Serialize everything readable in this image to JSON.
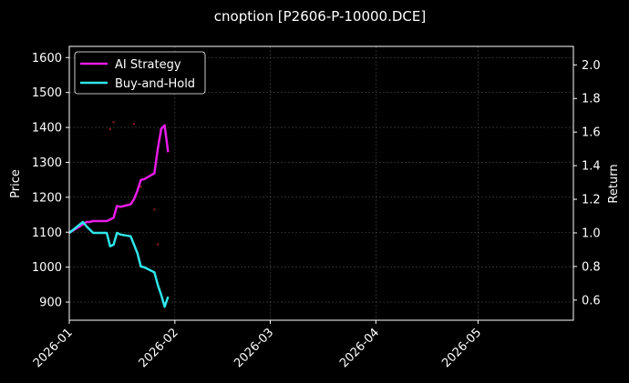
{
  "chart_data": {
    "type": "line",
    "title": "cnoption [P2606-P-10000.DCE]",
    "xlabel": "",
    "ylabel_left": "Price",
    "ylabel_right": "Return",
    "x_ticks": [
      "2026-01",
      "2026-02",
      "2026-03",
      "2026-04",
      "2026-05"
    ],
    "x_tick_dates": [
      "2026-01-01",
      "2026-02-01",
      "2026-03-01",
      "2026-04-01",
      "2026-05-01"
    ],
    "xlim": [
      "2026-01-01",
      "2026-05-29"
    ],
    "y_left_ticks": [
      900,
      1000,
      1100,
      1200,
      1300,
      1400,
      1500,
      1600
    ],
    "ylim_left": [
      848,
      1632
    ],
    "y_right_ticks": [
      "0.6",
      "0.8",
      "1.0",
      "1.2",
      "1.4",
      "1.6",
      "1.8",
      "2.0"
    ],
    "ylim_right": [
      0.48,
      2.11
    ],
    "grid": true,
    "legend_position": "top-left",
    "colors": {
      "background": "#000000",
      "ai_strategy": "#e81ce8",
      "buy_and_hold": "#2ee6ea",
      "scatter": "#8b1a1a",
      "grid": "#4a4a4a",
      "text": "#ffffff"
    },
    "series": [
      {
        "name": "AI Strategy",
        "axis": "right",
        "x": [
          "2026-01-01",
          "2026-01-05",
          "2026-01-06",
          "2026-01-07",
          "2026-01-08",
          "2026-01-09",
          "2026-01-12",
          "2026-01-13",
          "2026-01-14",
          "2026-01-15",
          "2026-01-16",
          "2026-01-19",
          "2026-01-20",
          "2026-01-21",
          "2026-01-22",
          "2026-01-23",
          "2026-01-26",
          "2026-01-27",
          "2026-01-28",
          "2026-01-29",
          "2026-01-30"
        ],
        "values": [
          1.0,
          1.05,
          1.065,
          1.065,
          1.07,
          1.07,
          1.07,
          1.08,
          1.09,
          1.16,
          1.155,
          1.17,
          1.2,
          1.25,
          1.315,
          1.32,
          1.355,
          1.5,
          1.62,
          1.64,
          1.48
        ]
      },
      {
        "name": "Buy-and-Hold",
        "axis": "right",
        "x": [
          "2026-01-01",
          "2026-01-05",
          "2026-01-06",
          "2026-01-07",
          "2026-01-08",
          "2026-01-09",
          "2026-01-12",
          "2026-01-13",
          "2026-01-14",
          "2026-01-15",
          "2026-01-16",
          "2026-01-19",
          "2026-01-20",
          "2026-01-21",
          "2026-01-22",
          "2026-01-23",
          "2026-01-26",
          "2026-01-27",
          "2026-01-28",
          "2026-01-29",
          "2026-01-30"
        ],
        "values": [
          1.0,
          1.065,
          1.04,
          1.02,
          1.0,
          1.0,
          1.0,
          0.92,
          0.93,
          1.0,
          0.99,
          0.98,
          0.93,
          0.88,
          0.8,
          0.795,
          0.765,
          0.69,
          0.63,
          0.56,
          0.62
        ]
      },
      {
        "name": "",
        "type": "scatter",
        "axis": "left",
        "x": [
          "2026-01-13",
          "2026-01-14",
          "2026-01-19",
          "2026-01-20",
          "2026-01-22",
          "2026-01-26",
          "2026-01-27"
        ],
        "values": [
          1395,
          1415,
          1500,
          1410,
          1230,
          1165,
          1065
        ]
      }
    ]
  }
}
